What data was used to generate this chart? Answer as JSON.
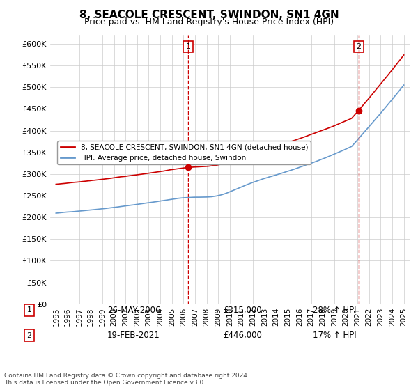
{
  "title": "8, SEACOLE CRESCENT, SWINDON, SN1 4GN",
  "subtitle": "Price paid vs. HM Land Registry's House Price Index (HPI)",
  "ylabel": "",
  "xlabel": "",
  "ylim": [
    0,
    620000
  ],
  "yticks": [
    0,
    50000,
    100000,
    150000,
    200000,
    250000,
    300000,
    350000,
    400000,
    450000,
    500000,
    550000,
    600000
  ],
  "ytick_labels": [
    "£0",
    "£50K",
    "£100K",
    "£150K",
    "£200K",
    "£250K",
    "£300K",
    "£350K",
    "£400K",
    "£450K",
    "£500K",
    "£550K",
    "£600K"
  ],
  "red_line_color": "#cc0000",
  "blue_line_color": "#6699cc",
  "marker1_date": 2006.4,
  "marker1_value": 315000,
  "marker1_label": "1",
  "marker1_text": "26-MAY-2006",
  "marker1_price": "£315,000",
  "marker1_hpi": "28% ↑ HPI",
  "marker2_date": 2021.12,
  "marker2_value": 446000,
  "marker2_label": "2",
  "marker2_text": "19-FEB-2021",
  "marker2_price": "£446,000",
  "marker2_hpi": "17% ↑ HPI",
  "legend_entry1": "8, SEACOLE CRESCENT, SWINDON, SN1 4GN (detached house)",
  "legend_entry2": "HPI: Average price, detached house, Swindon",
  "footnote": "Contains HM Land Registry data © Crown copyright and database right 2024.\nThis data is licensed under the Open Government Licence v3.0.",
  "background_color": "#ffffff",
  "grid_color": "#cccccc"
}
